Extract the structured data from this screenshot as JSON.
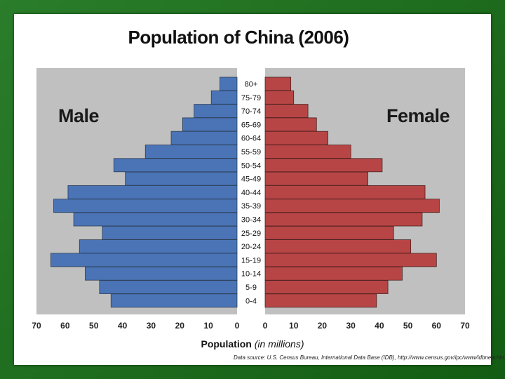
{
  "chart_data": {
    "type": "bar",
    "orientation": "horizontal",
    "title": "Population of China (2006)",
    "xlabel_bold": "Population",
    "xlabel_italic": "(in millions)",
    "source": "Data source: U.S. Census Bureau, International Data Base (IDB), http://www.census.gov/ipc/www/idbnew.html",
    "categories": [
      "80+",
      "75-79",
      "70-74",
      "65-69",
      "60-64",
      "55-59",
      "50-54",
      "45-49",
      "40-44",
      "35-39",
      "30-34",
      "25-29",
      "20-24",
      "15-19",
      "10-14",
      "5-9",
      "0-4"
    ],
    "series": [
      {
        "name": "Male",
        "color": "#4a74b5",
        "values": [
          6,
          9,
          15,
          19,
          23,
          32,
          43,
          39,
          59,
          64,
          57,
          47,
          55,
          65,
          53,
          48,
          44
        ]
      },
      {
        "name": "Female",
        "color": "#b84545",
        "values": [
          9,
          10,
          15,
          18,
          22,
          30,
          41,
          36,
          56,
          61,
          55,
          45,
          51,
          60,
          48,
          43,
          39
        ]
      }
    ],
    "xlim": [
      0,
      70
    ],
    "xticks": [
      70,
      60,
      50,
      40,
      30,
      20,
      10,
      0
    ],
    "plot_background": "#c0c0c0",
    "grid": false
  }
}
